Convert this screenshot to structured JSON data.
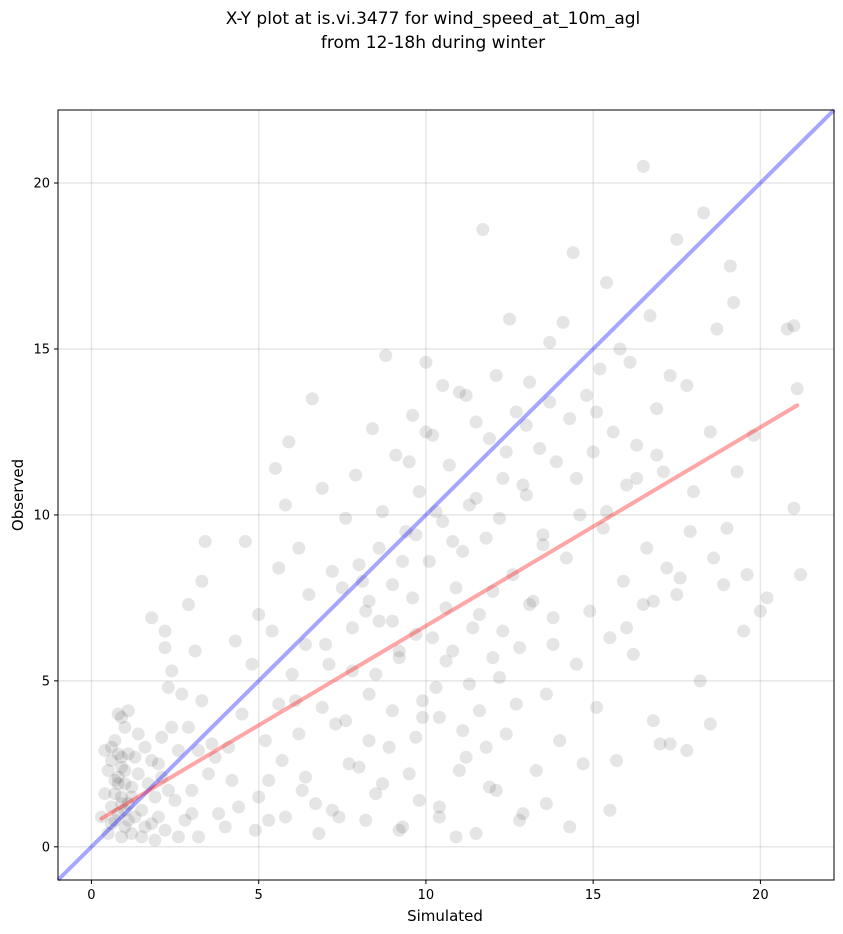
{
  "chart_data": {
    "type": "scatter",
    "title_line1": "X-Y plot at is.vi.3477 for wind_speed_at_10m_agl",
    "title_line2": "from 12-18h during winter",
    "xlabel": "Simulated",
    "ylabel": "Observed",
    "xlim": [
      -1.0,
      22.2
    ],
    "ylim": [
      -1.0,
      22.2
    ],
    "xticks": [
      0,
      5,
      10,
      15,
      20
    ],
    "yticks": [
      0,
      5,
      10,
      15,
      20
    ],
    "grid": true,
    "point_color": "#000000",
    "point_alpha": 0.1,
    "identity_line": {
      "color": "#0000ff",
      "alpha": 0.35,
      "x": [
        -1.0,
        22.2
      ],
      "y": [
        -1.0,
        22.2
      ]
    },
    "fit_line": {
      "color": "#ff0000",
      "alpha": 0.35,
      "x": [
        0.3,
        21.1
      ],
      "y": [
        0.85,
        13.3
      ]
    },
    "points": [
      [
        0.6,
        1.2
      ],
      [
        0.7,
        0.8
      ],
      [
        0.8,
        2.1
      ],
      [
        0.9,
        1.5
      ],
      [
        1.0,
        0.6
      ],
      [
        1.1,
        2.8
      ],
      [
        0.7,
        3.2
      ],
      [
        0.9,
        2.4
      ],
      [
        1.2,
        1.8
      ],
      [
        0.5,
        0.4
      ],
      [
        0.6,
        2.6
      ],
      [
        0.8,
        1.0
      ],
      [
        1.0,
        3.6
      ],
      [
        1.3,
        0.9
      ],
      [
        0.4,
        1.6
      ],
      [
        0.9,
        0.3
      ],
      [
        1.1,
        1.3
      ],
      [
        0.7,
        2.0
      ],
      [
        1.4,
        2.2
      ],
      [
        0.8,
        4.0
      ],
      [
        1.5,
        1.1
      ],
      [
        1.6,
        3.0
      ],
      [
        1.8,
        0.7
      ],
      [
        2.0,
        2.5
      ],
      [
        1.7,
        1.9
      ],
      [
        2.2,
        0.5
      ],
      [
        2.5,
        1.4
      ],
      [
        2.1,
        3.3
      ],
      [
        1.9,
        0.2
      ],
      [
        2.6,
        2.9
      ],
      [
        0.3,
        0.9
      ],
      [
        0.5,
        2.3
      ],
      [
        1.2,
        0.4
      ],
      [
        1.0,
        1.1
      ],
      [
        0.6,
        3.0
      ],
      [
        1.3,
        2.7
      ],
      [
        1.5,
        0.3
      ],
      [
        0.9,
        3.9
      ],
      [
        1.1,
        4.1
      ],
      [
        0.4,
        2.9
      ],
      [
        2.8,
        0.8
      ],
      [
        3.0,
        1.7
      ],
      [
        3.2,
        0.3
      ],
      [
        3.5,
        2.2
      ],
      [
        2.9,
        3.6
      ],
      [
        3.8,
        1.0
      ],
      [
        3.3,
        4.4
      ],
      [
        4.0,
        0.6
      ],
      [
        3.6,
        3.1
      ],
      [
        4.2,
        2.0
      ],
      [
        2.7,
        4.6
      ],
      [
        2.4,
        5.3
      ],
      [
        3.1,
        5.9
      ],
      [
        3.4,
        9.2
      ],
      [
        3.3,
        8.0
      ],
      [
        2.9,
        7.3
      ],
      [
        2.2,
        6.5
      ],
      [
        2.2,
        6.0
      ],
      [
        1.8,
        6.9
      ],
      [
        2.3,
        4.8
      ],
      [
        4.5,
        4.0
      ],
      [
        4.3,
        6.2
      ],
      [
        4.6,
        9.2
      ],
      [
        4.8,
        5.5
      ],
      [
        5.0,
        7.0
      ],
      [
        5.2,
        3.2
      ],
      [
        5.4,
        6.5
      ],
      [
        5.5,
        11.4
      ],
      [
        5.6,
        8.4
      ],
      [
        5.8,
        10.3
      ],
      [
        5.0,
        1.5
      ],
      [
        5.3,
        0.8
      ],
      [
        5.7,
        2.6
      ],
      [
        5.9,
        12.2
      ],
      [
        6.0,
        5.2
      ],
      [
        6.2,
        9.0
      ],
      [
        6.1,
        4.4
      ],
      [
        6.4,
        2.1
      ],
      [
        6.5,
        7.6
      ],
      [
        6.7,
        1.3
      ],
      [
        6.6,
        13.5
      ],
      [
        6.9,
        10.8
      ],
      [
        7.0,
        6.1
      ],
      [
        7.2,
        8.3
      ],
      [
        7.3,
        3.7
      ],
      [
        7.4,
        0.9
      ],
      [
        7.6,
        9.9
      ],
      [
        7.8,
        5.3
      ],
      [
        7.9,
        11.2
      ],
      [
        8.0,
        2.4
      ],
      [
        8.1,
        8.0
      ],
      [
        8.2,
        7.1
      ],
      [
        8.3,
        4.6
      ],
      [
        8.4,
        12.6
      ],
      [
        8.5,
        1.6
      ],
      [
        8.6,
        6.8
      ],
      [
        8.7,
        10.1
      ],
      [
        8.8,
        14.8
      ],
      [
        8.9,
        3.0
      ],
      [
        9.0,
        7.9
      ],
      [
        9.1,
        11.8
      ],
      [
        9.2,
        5.7
      ],
      [
        9.3,
        0.6
      ],
      [
        9.4,
        9.5
      ],
      [
        9.5,
        2.2
      ],
      [
        9.6,
        13.0
      ],
      [
        9.7,
        6.4
      ],
      [
        9.8,
        10.7
      ],
      [
        9.9,
        3.9
      ],
      [
        10.0,
        14.6
      ],
      [
        10.1,
        8.6
      ],
      [
        10.2,
        12.4
      ],
      [
        10.3,
        4.8
      ],
      [
        10.4,
        1.2
      ],
      [
        10.5,
        9.8
      ],
      [
        10.6,
        7.2
      ],
      [
        10.7,
        11.5
      ],
      [
        10.8,
        5.9
      ],
      [
        10.9,
        0.3
      ],
      [
        11.0,
        13.7
      ],
      [
        11.1,
        8.9
      ],
      [
        11.2,
        2.7
      ],
      [
        11.3,
        10.3
      ],
      [
        11.4,
        6.6
      ],
      [
        11.5,
        12.8
      ],
      [
        11.6,
        4.1
      ],
      [
        11.7,
        18.6
      ],
      [
        11.8,
        9.3
      ],
      [
        11.9,
        1.8
      ],
      [
        12.0,
        7.7
      ],
      [
        12.1,
        14.2
      ],
      [
        12.2,
        5.1
      ],
      [
        12.3,
        11.1
      ],
      [
        12.4,
        3.4
      ],
      [
        12.5,
        15.9
      ],
      [
        12.6,
        8.2
      ],
      [
        12.7,
        13.1
      ],
      [
        12.8,
        6.0
      ],
      [
        12.9,
        1.0
      ],
      [
        13.0,
        10.6
      ],
      [
        13.1,
        14.0
      ],
      [
        13.2,
        7.4
      ],
      [
        13.3,
        2.3
      ],
      [
        13.4,
        12.0
      ],
      [
        13.5,
        9.1
      ],
      [
        13.6,
        4.6
      ],
      [
        13.7,
        15.2
      ],
      [
        13.8,
        6.9
      ],
      [
        13.9,
        11.6
      ],
      [
        14.0,
        3.2
      ],
      [
        14.1,
        15.8
      ],
      [
        14.2,
        8.7
      ],
      [
        14.3,
        12.9
      ],
      [
        14.4,
        17.9
      ],
      [
        14.5,
        5.5
      ],
      [
        14.6,
        10.0
      ],
      [
        14.7,
        2.5
      ],
      [
        14.8,
        13.6
      ],
      [
        14.9,
        7.1
      ],
      [
        15.0,
        11.9
      ],
      [
        15.1,
        4.2
      ],
      [
        15.2,
        14.4
      ],
      [
        15.3,
        9.6
      ],
      [
        15.4,
        17.0
      ],
      [
        15.5,
        6.3
      ],
      [
        15.6,
        12.5
      ],
      [
        15.7,
        2.6
      ],
      [
        15.8,
        15.0
      ],
      [
        15.9,
        8.0
      ],
      [
        16.0,
        10.9
      ],
      [
        16.1,
        14.6
      ],
      [
        16.2,
        5.8
      ],
      [
        16.3,
        12.1
      ],
      [
        16.5,
        20.5
      ],
      [
        16.6,
        9.0
      ],
      [
        16.7,
        16.0
      ],
      [
        16.8,
        7.4
      ],
      [
        16.9,
        13.2
      ],
      [
        17.0,
        3.1
      ],
      [
        17.1,
        11.3
      ],
      [
        17.3,
        14.2
      ],
      [
        17.5,
        18.3
      ],
      [
        17.6,
        8.1
      ],
      [
        17.8,
        13.9
      ],
      [
        18.0,
        10.7
      ],
      [
        18.2,
        5.0
      ],
      [
        18.3,
        19.1
      ],
      [
        18.5,
        12.5
      ],
      [
        18.7,
        15.6
      ],
      [
        18.9,
        7.9
      ],
      [
        19.0,
        9.6
      ],
      [
        19.1,
        17.5
      ],
      [
        19.2,
        16.4
      ],
      [
        19.3,
        11.3
      ],
      [
        19.5,
        6.5
      ],
      [
        19.8,
        12.4
      ],
      [
        20.0,
        7.1
      ],
      [
        20.2,
        7.5
      ],
      [
        20.8,
        15.6
      ],
      [
        21.0,
        10.2
      ],
      [
        21.1,
        13.8
      ],
      [
        21.2,
        8.2
      ],
      [
        21.0,
        15.7
      ],
      [
        18.5,
        3.7
      ],
      [
        17.8,
        2.9
      ],
      [
        16.8,
        3.8
      ],
      [
        17.3,
        3.1
      ],
      [
        15.5,
        1.1
      ],
      [
        14.3,
        0.6
      ],
      [
        13.6,
        1.3
      ],
      [
        12.8,
        0.8
      ],
      [
        12.1,
        1.7
      ],
      [
        11.5,
        0.4
      ],
      [
        11.0,
        2.3
      ],
      [
        10.4,
        0.9
      ],
      [
        9.8,
        1.4
      ],
      [
        9.2,
        0.5
      ],
      [
        8.7,
        1.9
      ],
      [
        8.2,
        0.8
      ],
      [
        7.7,
        2.5
      ],
      [
        7.2,
        1.1
      ],
      [
        6.8,
        0.4
      ],
      [
        6.3,
        1.7
      ],
      [
        5.8,
        0.9
      ],
      [
        5.3,
        2.0
      ],
      [
        4.9,
        0.5
      ],
      [
        4.4,
        1.2
      ],
      [
        4.1,
        3.0
      ],
      [
        3.7,
        2.7
      ],
      [
        3.2,
        2.9
      ],
      [
        1.8,
        2.6
      ],
      [
        1.6,
        0.6
      ],
      [
        2.3,
        1.7
      ],
      [
        2.0,
        0.9
      ],
      [
        1.4,
        3.4
      ],
      [
        2.4,
        3.6
      ],
      [
        2.6,
        0.3
      ],
      [
        3.0,
        1.0
      ],
      [
        1.9,
        1.5
      ],
      [
        2.1,
        2.1
      ],
      [
        9.5,
        11.6
      ],
      [
        10.0,
        12.5
      ],
      [
        10.5,
        13.9
      ],
      [
        11.2,
        13.6
      ],
      [
        11.9,
        12.3
      ],
      [
        12.4,
        11.9
      ],
      [
        13.0,
        12.7
      ],
      [
        13.7,
        13.4
      ],
      [
        14.5,
        11.1
      ],
      [
        15.1,
        13.1
      ],
      [
        8.0,
        8.5
      ],
      [
        8.6,
        9.0
      ],
      [
        9.3,
        8.6
      ],
      [
        9.7,
        9.4
      ],
      [
        10.3,
        10.1
      ],
      [
        10.8,
        9.2
      ],
      [
        11.5,
        10.5
      ],
      [
        12.2,
        9.9
      ],
      [
        12.9,
        10.9
      ],
      [
        13.5,
        9.4
      ],
      [
        7.5,
        7.8
      ],
      [
        8.3,
        7.4
      ],
      [
        9.0,
        6.8
      ],
      [
        9.6,
        7.5
      ],
      [
        10.2,
        6.3
      ],
      [
        10.9,
        7.8
      ],
      [
        11.6,
        7.0
      ],
      [
        12.3,
        6.5
      ],
      [
        13.1,
        7.3
      ],
      [
        13.8,
        6.1
      ],
      [
        6.4,
        6.1
      ],
      [
        7.1,
        5.5
      ],
      [
        7.8,
        6.6
      ],
      [
        8.5,
        5.2
      ],
      [
        9.2,
        5.9
      ],
      [
        9.9,
        4.4
      ],
      [
        10.6,
        5.6
      ],
      [
        11.3,
        4.9
      ],
      [
        12.0,
        5.7
      ],
      [
        12.7,
        4.3
      ],
      [
        5.6,
        4.3
      ],
      [
        6.2,
        3.4
      ],
      [
        6.9,
        4.2
      ],
      [
        7.6,
        3.8
      ],
      [
        8.3,
        3.2
      ],
      [
        9.0,
        4.1
      ],
      [
        9.7,
        3.3
      ],
      [
        10.4,
        3.9
      ],
      [
        11.1,
        3.5
      ],
      [
        11.8,
        3.0
      ],
      [
        0.8,
        1.9
      ],
      [
        0.9,
        1.3
      ],
      [
        1.0,
        2.3
      ],
      [
        0.7,
        1.6
      ],
      [
        1.1,
        0.8
      ],
      [
        0.8,
        2.8
      ],
      [
        0.6,
        0.7
      ],
      [
        1.2,
        1.5
      ],
      [
        1.0,
        1.9
      ],
      [
        0.9,
        2.7
      ],
      [
        16.5,
        7.3
      ],
      [
        17.2,
        8.4
      ],
      [
        17.9,
        9.5
      ],
      [
        18.6,
        8.7
      ],
      [
        16.0,
        6.6
      ],
      [
        16.9,
        11.8
      ],
      [
        17.5,
        7.6
      ],
      [
        15.4,
        10.1
      ],
      [
        16.3,
        11.1
      ],
      [
        19.6,
        8.2
      ]
    ]
  }
}
